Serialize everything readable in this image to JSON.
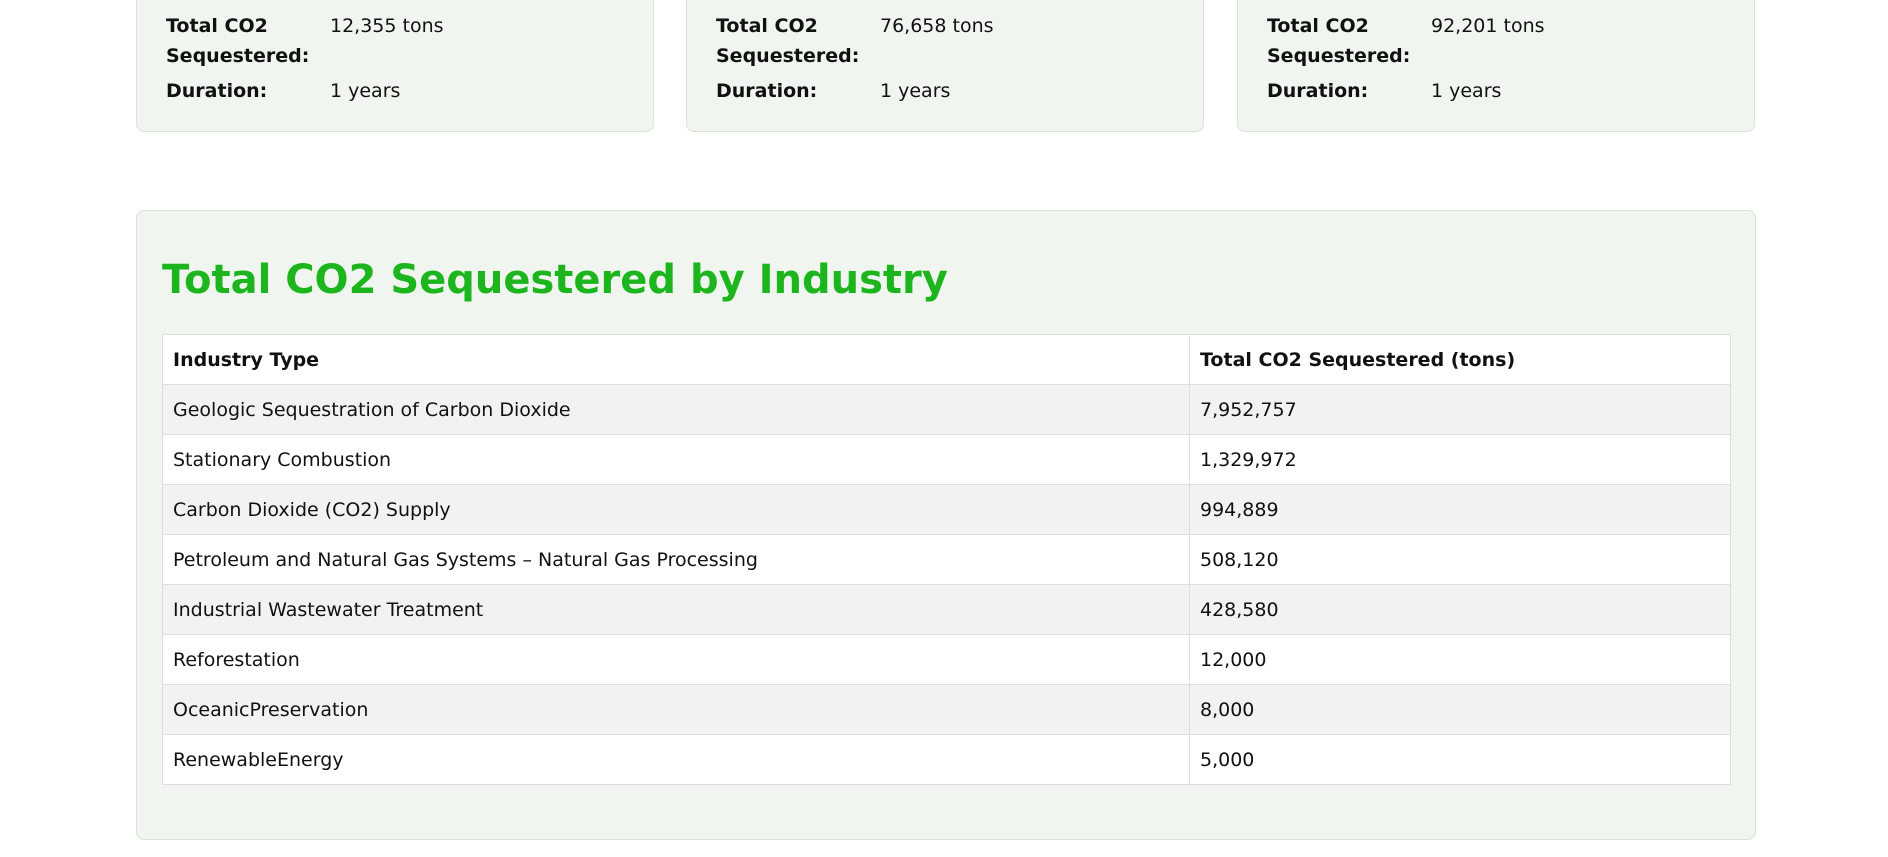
{
  "project_cards": [
    {
      "total_label": "Total CO2 Sequestered:",
      "total_value": "12,355 tons",
      "duration_label": "Duration:",
      "duration_value": "1 years"
    },
    {
      "total_label": "Total CO2 Sequestered:",
      "total_value": "76,658 tons",
      "duration_label": "Duration:",
      "duration_value": "1 years"
    },
    {
      "total_label": "Total CO2 Sequestered:",
      "total_value": "92,201 tons",
      "duration_label": "Duration:",
      "duration_value": "1 years"
    }
  ],
  "industry_section": {
    "title": "Total CO2 Sequestered by Industry",
    "columns": [
      "Industry Type",
      "Total CO2 Sequestered (tons)"
    ],
    "rows": [
      {
        "industry": "Geologic Sequestration of Carbon Dioxide",
        "total": "7,952,757"
      },
      {
        "industry": "Stationary Combustion",
        "total": "1,329,972"
      },
      {
        "industry": "Carbon Dioxide (CO2) Supply",
        "total": "994,889"
      },
      {
        "industry": "Petroleum and Natural Gas Systems – Natural Gas Processing",
        "total": "508,120"
      },
      {
        "industry": "Industrial Wastewater Treatment",
        "total": "428,580"
      },
      {
        "industry": "Reforestation",
        "total": "12,000"
      },
      {
        "industry": "OceanicPreservation",
        "total": "8,000"
      },
      {
        "industry": "RenewableEnergy",
        "total": "5,000"
      }
    ]
  },
  "colors": {
    "accent_green": "#1db51d",
    "panel_background": "#f0f6ef",
    "row_stripe": "#f2f2f2"
  }
}
